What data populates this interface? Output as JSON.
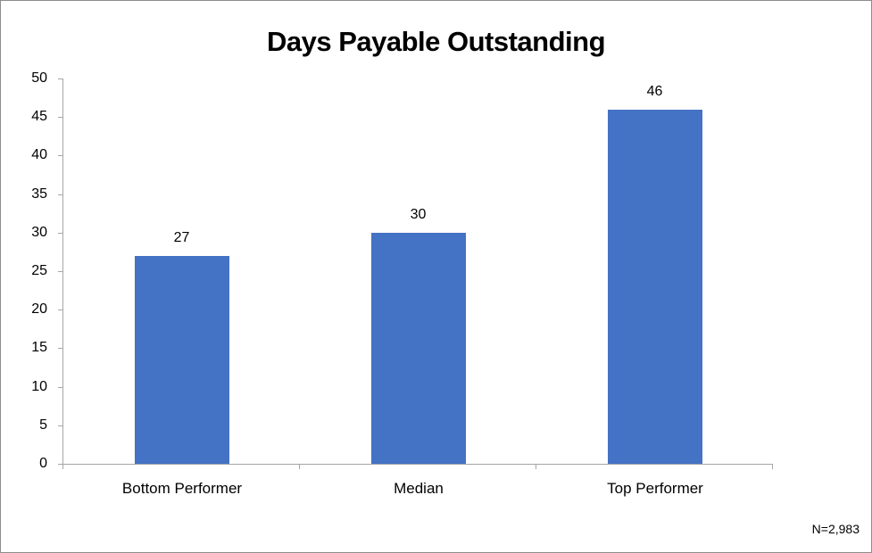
{
  "chart_data": {
    "type": "bar",
    "title": "Days Payable Outstanding",
    "categories": [
      "Bottom Performer",
      "Median",
      "Top Performer"
    ],
    "values": [
      27,
      30,
      46
    ],
    "data_labels": [
      "27",
      "30",
      "46"
    ],
    "xlabel": "",
    "ylabel": "",
    "ylim": [
      0,
      50
    ],
    "yticks": [
      0,
      5,
      10,
      15,
      20,
      25,
      30,
      35,
      40,
      45,
      50
    ],
    "grid": false,
    "legend": null,
    "bar_color": "#4472C4",
    "annotations": [
      "N=2,983"
    ]
  },
  "footnote": "N=2,983"
}
